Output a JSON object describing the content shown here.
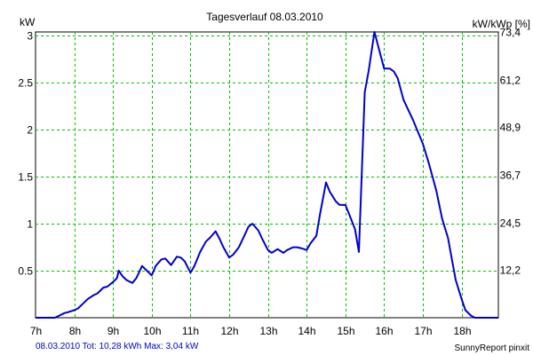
{
  "colors": {
    "background": "#ffffff",
    "plot_background": "#ffffff",
    "grid": "#00c000",
    "axis": "#000000",
    "series": "#0000cc",
    "footer_text": "#0000c8"
  },
  "footer": {
    "summary": "08.03.2010 Tot: 10,28 kWh Max: 3,04 kW",
    "brand": "SunnyReport pinxit"
  },
  "chart_data": {
    "type": "line",
    "title": "Tagesverlauf 08.03.2010",
    "ylabel": "kW",
    "y2label": "kW/kWp [%]",
    "xlabel": "",
    "xlim": [
      7.0,
      18.95
    ],
    "ylim": [
      0,
      3.04
    ],
    "y2lim": [
      0,
      73.4
    ],
    "grid": true,
    "legend": "none",
    "x_tick_values": [
      7,
      8,
      9,
      10,
      11,
      12,
      13,
      14,
      15,
      16,
      17,
      18
    ],
    "x_tick_labels": [
      "7h",
      "8h",
      "9h",
      "10h",
      "11h",
      "12h",
      "13h",
      "14h",
      "15h",
      "16h",
      "17h",
      "18h"
    ],
    "y_tick_values": [
      0.5,
      1,
      1.5,
      2,
      2.5,
      3
    ],
    "y_tick_labels": [
      "0.5",
      "1",
      "1.5",
      "2",
      "2.5",
      "3"
    ],
    "y2_tick_values": [
      12.2,
      24.5,
      36.7,
      48.9,
      61.2,
      73.4
    ],
    "y2_tick_labels": [
      "12,2",
      "24,5",
      "36,7",
      "48,9",
      "61,2",
      "73,4"
    ],
    "series": [
      {
        "x": [
          7.0,
          7.5,
          7.6,
          7.75,
          7.85,
          8.0,
          8.1,
          8.2,
          8.35,
          8.5,
          8.6,
          8.75,
          8.85,
          9.0,
          9.1,
          9.15,
          9.25,
          9.35,
          9.5,
          9.6,
          9.75,
          9.85,
          10.0,
          10.1,
          10.25,
          10.35,
          10.5,
          10.65,
          10.75,
          10.85,
          11.0,
          11.1,
          11.25,
          11.4,
          11.5,
          11.65,
          11.75,
          11.85,
          12.0,
          12.1,
          12.25,
          12.4,
          12.5,
          12.6,
          12.75,
          12.85,
          13.0,
          13.1,
          13.25,
          13.4,
          13.5,
          13.65,
          13.75,
          13.85,
          14.0,
          14.1,
          14.25,
          14.35,
          14.5,
          14.6,
          14.75,
          14.85,
          15.0,
          15.1,
          15.25,
          15.35,
          15.5,
          15.6,
          15.75,
          16.0,
          16.15,
          16.25,
          16.35,
          16.5,
          16.75,
          17.0,
          17.15,
          17.25,
          17.35,
          17.5,
          17.65,
          17.75,
          17.85,
          18.0,
          18.1,
          18.25,
          18.35,
          18.5,
          18.65,
          18.95
        ],
        "values": [
          0.0,
          0.0,
          0.02,
          0.05,
          0.06,
          0.08,
          0.1,
          0.14,
          0.2,
          0.24,
          0.26,
          0.32,
          0.33,
          0.38,
          0.42,
          0.5,
          0.44,
          0.4,
          0.37,
          0.42,
          0.55,
          0.51,
          0.45,
          0.55,
          0.62,
          0.63,
          0.56,
          0.65,
          0.64,
          0.6,
          0.48,
          0.55,
          0.7,
          0.81,
          0.85,
          0.92,
          0.84,
          0.75,
          0.64,
          0.67,
          0.75,
          0.88,
          0.97,
          1.0,
          0.93,
          0.84,
          0.72,
          0.69,
          0.73,
          0.69,
          0.72,
          0.75,
          0.75,
          0.74,
          0.72,
          0.79,
          0.87,
          1.11,
          1.44,
          1.34,
          1.24,
          1.2,
          1.2,
          1.1,
          0.94,
          0.7,
          2.4,
          2.62,
          3.04,
          2.65,
          2.65,
          2.62,
          2.55,
          2.32,
          2.1,
          1.85,
          1.65,
          1.5,
          1.35,
          1.05,
          0.85,
          0.62,
          0.4,
          0.2,
          0.08,
          0.02,
          0.0,
          0.0,
          0.0,
          0.0
        ]
      }
    ]
  }
}
